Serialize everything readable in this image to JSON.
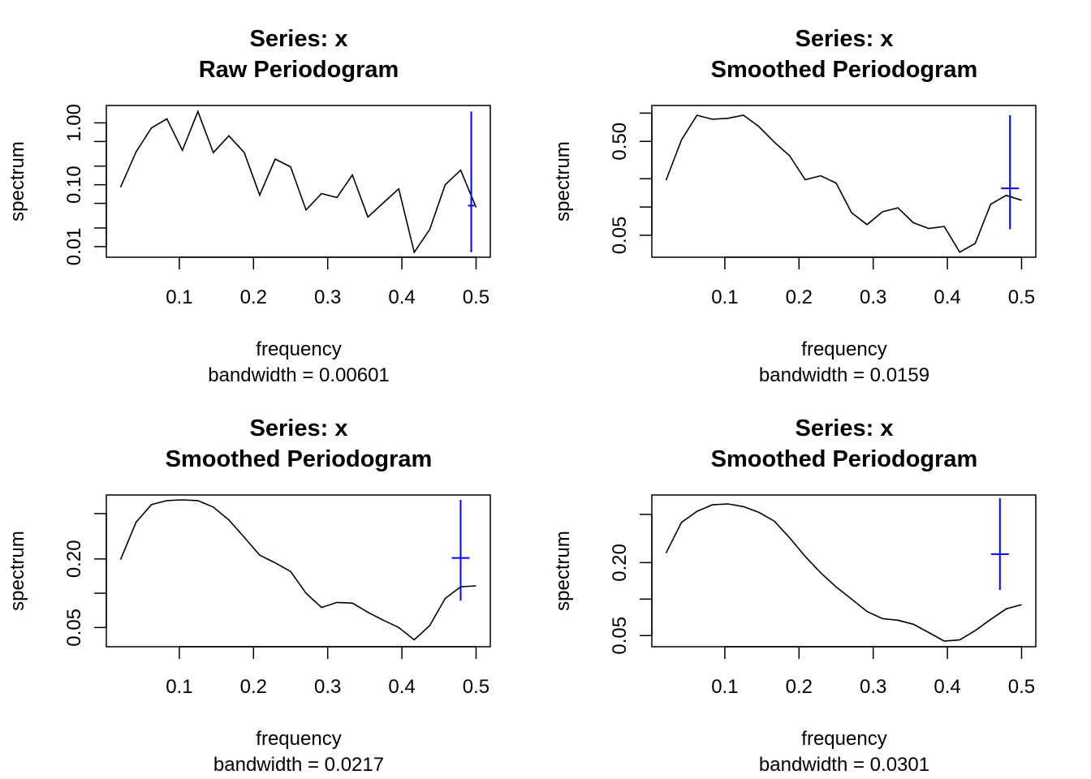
{
  "chart_data": [
    {
      "type": "line",
      "title": [
        "Series: x",
        "Raw Periodogram"
      ],
      "xlabel": "frequency",
      "sublabel": "bandwidth = 0.00601",
      "ylabel": "spectrum",
      "yscale": "log",
      "xlim": [
        0.0208,
        0.5
      ],
      "ylim": [
        0.0083,
        1.55
      ],
      "xticks": [
        0.1,
        0.2,
        0.3,
        0.4,
        0.5
      ],
      "xtick_labels": [
        "0.1",
        "0.2",
        "0.3",
        "0.4",
        "0.5"
      ],
      "yticks": [
        1.0,
        0.5,
        0.2,
        0.1,
        0.05,
        0.02,
        0.01
      ],
      "ytick_labels": [
        "1.00",
        "",
        "",
        "0.10",
        "",
        "",
        "0.01"
      ],
      "x": [
        0.0208,
        0.0417,
        0.0625,
        0.0833,
        0.1042,
        0.125,
        0.1458,
        0.1667,
        0.1875,
        0.2083,
        0.2292,
        0.25,
        0.2708,
        0.2917,
        0.3125,
        0.3333,
        0.3542,
        0.375,
        0.3958,
        0.4167,
        0.4375,
        0.4583,
        0.4792,
        0.5
      ],
      "values": [
        0.091,
        0.34,
        0.83,
        1.16,
        0.36,
        1.53,
        0.33,
        0.62,
        0.33,
        0.068,
        0.26,
        0.195,
        0.039,
        0.072,
        0.062,
        0.144,
        0.03,
        0.051,
        0.086,
        0.0081,
        0.019,
        0.1,
        0.172,
        0.043
      ],
      "ci": {
        "x": 0.4935,
        "center": 0.046,
        "lower": 0.0081,
        "upper": 1.53,
        "color": "#0000ff"
      }
    },
    {
      "type": "line",
      "title": [
        "Series: x",
        "Smoothed Periodogram"
      ],
      "xlabel": "frequency",
      "sublabel": "bandwidth = 0.0159",
      "ylabel": "spectrum",
      "yscale": "log",
      "xlim": [
        0.0208,
        0.5
      ],
      "ylim": [
        0.0335,
        1.05
      ],
      "xticks": [
        0.1,
        0.2,
        0.3,
        0.4,
        0.5
      ],
      "xtick_labels": [
        "0.1",
        "0.2",
        "0.3",
        "0.4",
        "0.5"
      ],
      "yticks": [
        1.0,
        0.5,
        0.2,
        0.1,
        0.05
      ],
      "ytick_labels": [
        "",
        "0.50",
        "",
        "",
        "0.05"
      ],
      "x": [
        0.0208,
        0.0417,
        0.0625,
        0.0833,
        0.1042,
        0.125,
        0.1458,
        0.1667,
        0.1875,
        0.2083,
        0.2292,
        0.25,
        0.2708,
        0.2917,
        0.3125,
        0.3333,
        0.3542,
        0.375,
        0.3958,
        0.4167,
        0.4375,
        0.4583,
        0.4792,
        0.5
      ],
      "values": [
        0.193,
        0.52,
        0.95,
        0.86,
        0.88,
        0.95,
        0.72,
        0.49,
        0.35,
        0.195,
        0.215,
        0.18,
        0.087,
        0.065,
        0.089,
        0.098,
        0.068,
        0.059,
        0.062,
        0.033,
        0.041,
        0.107,
        0.133,
        0.118
      ],
      "ci": {
        "x": 0.4844,
        "center": 0.158,
        "lower": 0.058,
        "upper": 0.95,
        "color": "#0000ff"
      }
    },
    {
      "type": "line",
      "title": [
        "Series: x",
        "Smoothed Periodogram"
      ],
      "xlabel": "frequency",
      "sublabel": "bandwidth = 0.0217",
      "ylabel": "spectrum",
      "yscale": "log",
      "xlim": [
        0.0208,
        0.5
      ],
      "ylim": [
        0.038,
        0.65
      ],
      "xticks": [
        0.1,
        0.2,
        0.3,
        0.4,
        0.5
      ],
      "xtick_labels": [
        "0.1",
        "0.2",
        "0.3",
        "0.4",
        "0.5"
      ],
      "yticks": [
        0.5,
        0.2,
        0.1,
        0.05
      ],
      "ytick_labels": [
        "",
        "0.20",
        "",
        "0.05"
      ],
      "x": [
        0.0208,
        0.0417,
        0.0625,
        0.0833,
        0.1042,
        0.125,
        0.1458,
        0.1667,
        0.1875,
        0.2083,
        0.2292,
        0.25,
        0.2708,
        0.2917,
        0.3125,
        0.3333,
        0.3542,
        0.375,
        0.3958,
        0.4167,
        0.4375,
        0.4583,
        0.4792,
        0.5
      ],
      "values": [
        0.197,
        0.42,
        0.6,
        0.65,
        0.66,
        0.65,
        0.57,
        0.44,
        0.31,
        0.216,
        0.185,
        0.155,
        0.1,
        0.075,
        0.083,
        0.082,
        0.068,
        0.058,
        0.05,
        0.039,
        0.052,
        0.09,
        0.114,
        0.116
      ],
      "ci": {
        "x": 0.4792,
        "center": 0.204,
        "lower": 0.086,
        "upper": 0.66,
        "color": "#0000ff"
      }
    },
    {
      "type": "line",
      "title": [
        "Series: x",
        "Smoothed Periodogram"
      ],
      "xlabel": "frequency",
      "sublabel": "bandwidth = 0.0301",
      "ylabel": "spectrum",
      "yscale": "log",
      "xlim": [
        0.0208,
        0.5
      ],
      "ylim": [
        0.045,
        0.65
      ],
      "xticks": [
        0.1,
        0.2,
        0.3,
        0.4,
        0.5
      ],
      "xtick_labels": [
        "0.1",
        "0.2",
        "0.3",
        "0.4",
        "0.5"
      ],
      "yticks": [
        0.5,
        0.2,
        0.1,
        0.05
      ],
      "ytick_labels": [
        "",
        "0.20",
        "",
        "0.05"
      ],
      "x": [
        0.0208,
        0.0417,
        0.0625,
        0.0833,
        0.1042,
        0.125,
        0.1458,
        0.1667,
        0.1875,
        0.2083,
        0.2292,
        0.25,
        0.2708,
        0.2917,
        0.3125,
        0.3333,
        0.3542,
        0.375,
        0.3958,
        0.4167,
        0.4375,
        0.4583,
        0.4792,
        0.5
      ],
      "values": [
        0.24,
        0.43,
        0.53,
        0.6,
        0.61,
        0.58,
        0.52,
        0.44,
        0.32,
        0.225,
        0.165,
        0.126,
        0.1,
        0.079,
        0.069,
        0.067,
        0.062,
        0.053,
        0.045,
        0.046,
        0.055,
        0.068,
        0.083,
        0.09
      ],
      "ci": {
        "x": 0.4708,
        "center": 0.235,
        "lower": 0.119,
        "upper": 0.68,
        "color": "#0000ff"
      }
    }
  ]
}
